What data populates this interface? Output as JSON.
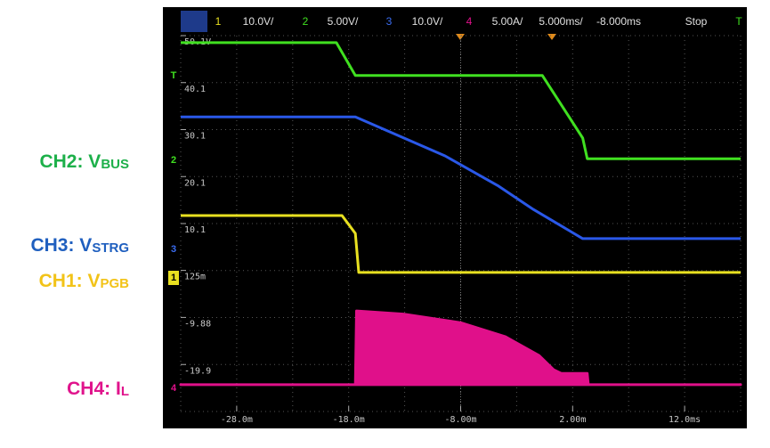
{
  "chart_data": {
    "type": "line",
    "header": [
      {
        "text": "1",
        "color": "#e8e020"
      },
      {
        "text": "10.0V/",
        "color": "#e0e0e0"
      },
      {
        "text": "2",
        "color": "#40e020"
      },
      {
        "text": "5.00V/",
        "color": "#e0e0e0"
      },
      {
        "text": "3",
        "color": "#3a6cf0"
      },
      {
        "text": "10.0V/",
        "color": "#e0e0e0"
      },
      {
        "text": "4",
        "color": "#e0108a"
      },
      {
        "text": "5.00A/",
        "color": "#e0e0e0"
      },
      {
        "text": "5.000ms/",
        "color": "#e0e0e0"
      },
      {
        "text": "-8.000ms",
        "color": "#e0e0e0"
      },
      {
        "text": "Stop",
        "color": "#e0e0e0"
      },
      {
        "text": "T",
        "color": "#40e020"
      }
    ],
    "channel_markers": [
      {
        "text": "T",
        "color": "#40e020"
      },
      {
        "text": "2",
        "color": "#40e020"
      },
      {
        "text": "3",
        "color": "#3a6cf0"
      },
      {
        "text": "1",
        "color": "#e8e020"
      },
      {
        "text": "4",
        "color": "#e0108a"
      }
    ],
    "xlim": [
      -33,
      17
    ],
    "xticks": [
      {
        "value": -28,
        "label": "-28.0m"
      },
      {
        "value": -18,
        "label": "-18.0m"
      },
      {
        "value": -8,
        "label": "-8.00m"
      },
      {
        "value": 2,
        "label": "2.00m"
      },
      {
        "value": 12,
        "label": "12.0ms"
      }
    ],
    "ylim": [
      -29.9,
      50.1
    ],
    "yticks": [
      {
        "value": 50.1,
        "label": "50.1V"
      },
      40.1,
      30.1,
      20.1,
      10.1,
      {
        "value": 0.125,
        "label": "125m"
      },
      -9.88,
      -19.9
    ],
    "series": [
      {
        "label": "CH2: V",
        "label_sub": "BUS",
        "label_color": "#1db04a",
        "color": "#40e020",
        "x": [
          -33,
          -19.1,
          -17.4,
          -0.7,
          2.9,
          3.3,
          17
        ],
        "values": [
          48.6,
          48.6,
          41.6,
          41.6,
          28.3,
          23.9,
          23.9
        ]
      },
      {
        "label": "CH3: V",
        "label_sub": "STRG",
        "label_color": "#1f5fbf",
        "color": "#2a58e8",
        "x": [
          -33,
          -17.4,
          -9.4,
          -4.7,
          -1.5,
          2.9,
          17
        ],
        "values": [
          32.8,
          32.8,
          24.5,
          18.2,
          13.1,
          6.9,
          6.9
        ]
      },
      {
        "label": "CH1: V",
        "label_sub": "PGB",
        "label_color": "#f2c318",
        "color": "#e8e020",
        "x": [
          -33,
          -18.6,
          -17.4,
          -17.1,
          17
        ],
        "values": [
          11.8,
          11.8,
          8.0,
          -0.3,
          -0.3
        ]
      },
      {
        "label": "CH4: I",
        "label_sub": "L",
        "label_color": "#e0148c",
        "color": "#e0108a",
        "fill": true,
        "x": [
          -33,
          -17.4,
          -17.3,
          -13,
          -8,
          -4,
          -1,
          0.3,
          1,
          3.3,
          3.4,
          17
        ],
        "values": [
          -24.2,
          -24.2,
          -8.5,
          -9.2,
          -11,
          -14,
          -18,
          -21,
          -21.8,
          -21.8,
          -24.2,
          -24.2
        ]
      }
    ]
  }
}
